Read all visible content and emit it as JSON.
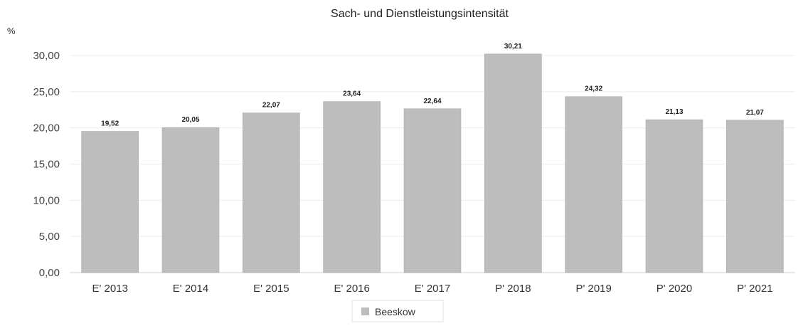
{
  "chart_data": {
    "type": "bar",
    "title": "Sach- und Dienstleistungsintensität",
    "ylabel": "%",
    "xlabel": "",
    "categories": [
      "E' 2013",
      "E' 2014",
      "E' 2015",
      "E' 2016",
      "E' 2017",
      "P' 2018",
      "P' 2019",
      "P' 2020",
      "P' 2021"
    ],
    "series": [
      {
        "name": "Beeskow",
        "values": [
          19.52,
          20.05,
          22.07,
          23.64,
          22.64,
          30.21,
          24.32,
          21.13,
          21.07
        ],
        "labels": [
          "19,52",
          "20,05",
          "22,07",
          "23,64",
          "22,64",
          "30,21",
          "24,32",
          "21,13",
          "21,07"
        ],
        "color": "#bdbdbd"
      }
    ],
    "ylim": [
      0,
      30
    ],
    "yticks": [
      0,
      5,
      10,
      15,
      20,
      25,
      30
    ],
    "ytick_labels": [
      "0,00",
      "5,00",
      "10,00",
      "15,00",
      "20,00",
      "25,00",
      "30,00"
    ],
    "grid": true,
    "legend": "bottom-center"
  }
}
